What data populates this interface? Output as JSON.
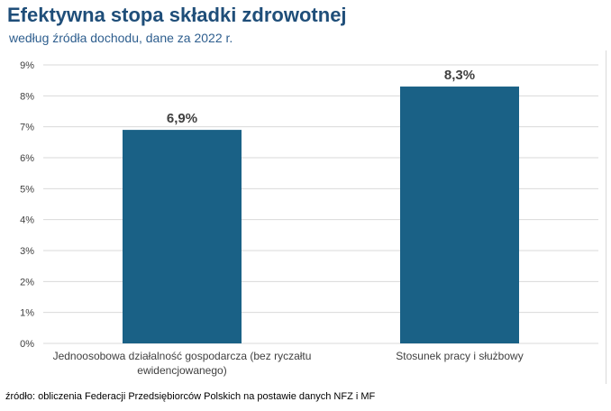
{
  "header": {
    "title": "Efektywna stopa składki zdrowotnej",
    "subtitle": "według źródła dochodu, dane za 2022 r."
  },
  "footer": {
    "source": "źródło: obliczenia Federacji Przedsiębiorców Polskich na postawie danych NFZ i MF"
  },
  "chart_data": {
    "type": "bar",
    "title": "Efektywna stopa składki zdrowotnej",
    "subtitle": "według źródła dochodu, dane za 2022 r.",
    "categories": [
      [
        "Jednoosobowa działalność gospodarcza (bez ryczałtu",
        "ewidencjowanego)"
      ],
      [
        "Stosunek pracy i służbowy"
      ]
    ],
    "values": [
      6.9,
      8.3
    ],
    "value_labels": [
      "6,9%",
      "8,3%"
    ],
    "ylim": [
      0,
      9
    ],
    "yticks": [
      "0%",
      "1%",
      "2%",
      "3%",
      "4%",
      "5%",
      "6%",
      "7%",
      "8%",
      "9%"
    ],
    "grid": true,
    "legend": "none",
    "bar_color": "#1a6186",
    "grid_color": "#d9d9d9",
    "label_color": "#404040"
  }
}
